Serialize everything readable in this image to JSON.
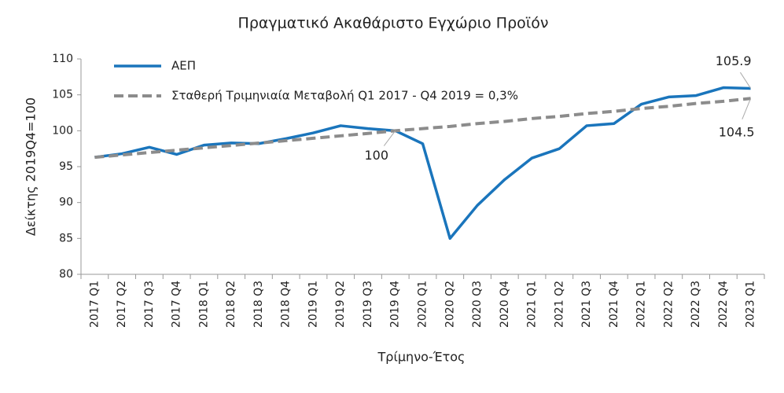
{
  "chart_data": {
    "type": "line",
    "title": "Πραγματικό Ακαθάριστο Εγχώριο Προϊόν",
    "x_label": "Τρίμηνο-Έτος",
    "y_label": "Δείκτης 2019Q4=100",
    "categories": [
      "2017 Q1",
      "2017 Q2",
      "2017 Q3",
      "2017 Q4",
      "2018 Q1",
      "2018 Q2",
      "2018 Q3",
      "2018 Q4",
      "2019 Q1",
      "2019 Q2",
      "2019 Q3",
      "2019 Q4",
      "2020 Q1",
      "2020 Q2",
      "2020 Q3",
      "2020 Q4",
      "2021 Q1",
      "2021 Q2",
      "2021 Q3",
      "2021 Q4",
      "2022 Q1",
      "2022 Q2",
      "2022 Q3",
      "2022 Q4",
      "2023 Q1"
    ],
    "series": [
      {
        "name": "ΑΕΠ",
        "color": "#1a75bc",
        "dashed": false,
        "values": [
          96.3,
          96.8,
          97.7,
          96.7,
          98.0,
          98.3,
          98.2,
          98.9,
          99.7,
          100.7,
          100.3,
          100.0,
          98.2,
          85.0,
          89.6,
          93.2,
          96.2,
          97.5,
          100.7,
          101.0,
          103.7,
          104.7,
          104.9,
          106.0,
          105.9
        ],
        "value_labels": [
          null,
          null,
          null,
          null,
          null,
          null,
          null,
          null,
          null,
          null,
          null,
          null,
          null,
          null,
          null,
          null,
          null,
          null,
          null,
          null,
          null,
          null,
          null,
          null,
          "105.9"
        ]
      },
      {
        "name": "Σταθερή Τριμηνιαία Μεταβολή Q1 2017 - Q4 2019 = 0,3%",
        "color": "#8c8c8c",
        "dashed": true,
        "values": [
          96.3,
          96.63,
          96.96,
          97.29,
          97.62,
          97.95,
          98.28,
          98.62,
          98.95,
          99.29,
          99.63,
          100.0,
          100.3,
          100.6,
          101.0,
          101.3,
          101.7,
          102.0,
          102.4,
          102.7,
          103.1,
          103.4,
          103.8,
          104.1,
          104.5
        ],
        "value_labels": [
          null,
          null,
          null,
          null,
          null,
          null,
          null,
          null,
          null,
          null,
          null,
          "100",
          null,
          null,
          null,
          null,
          null,
          null,
          null,
          null,
          null,
          null,
          null,
          null,
          "104.5"
        ]
      }
    ],
    "ylim": [
      80,
      110
    ],
    "yticks": [
      80,
      85,
      90,
      95,
      100,
      105,
      110
    ],
    "grid": false,
    "legend": "top-left"
  }
}
